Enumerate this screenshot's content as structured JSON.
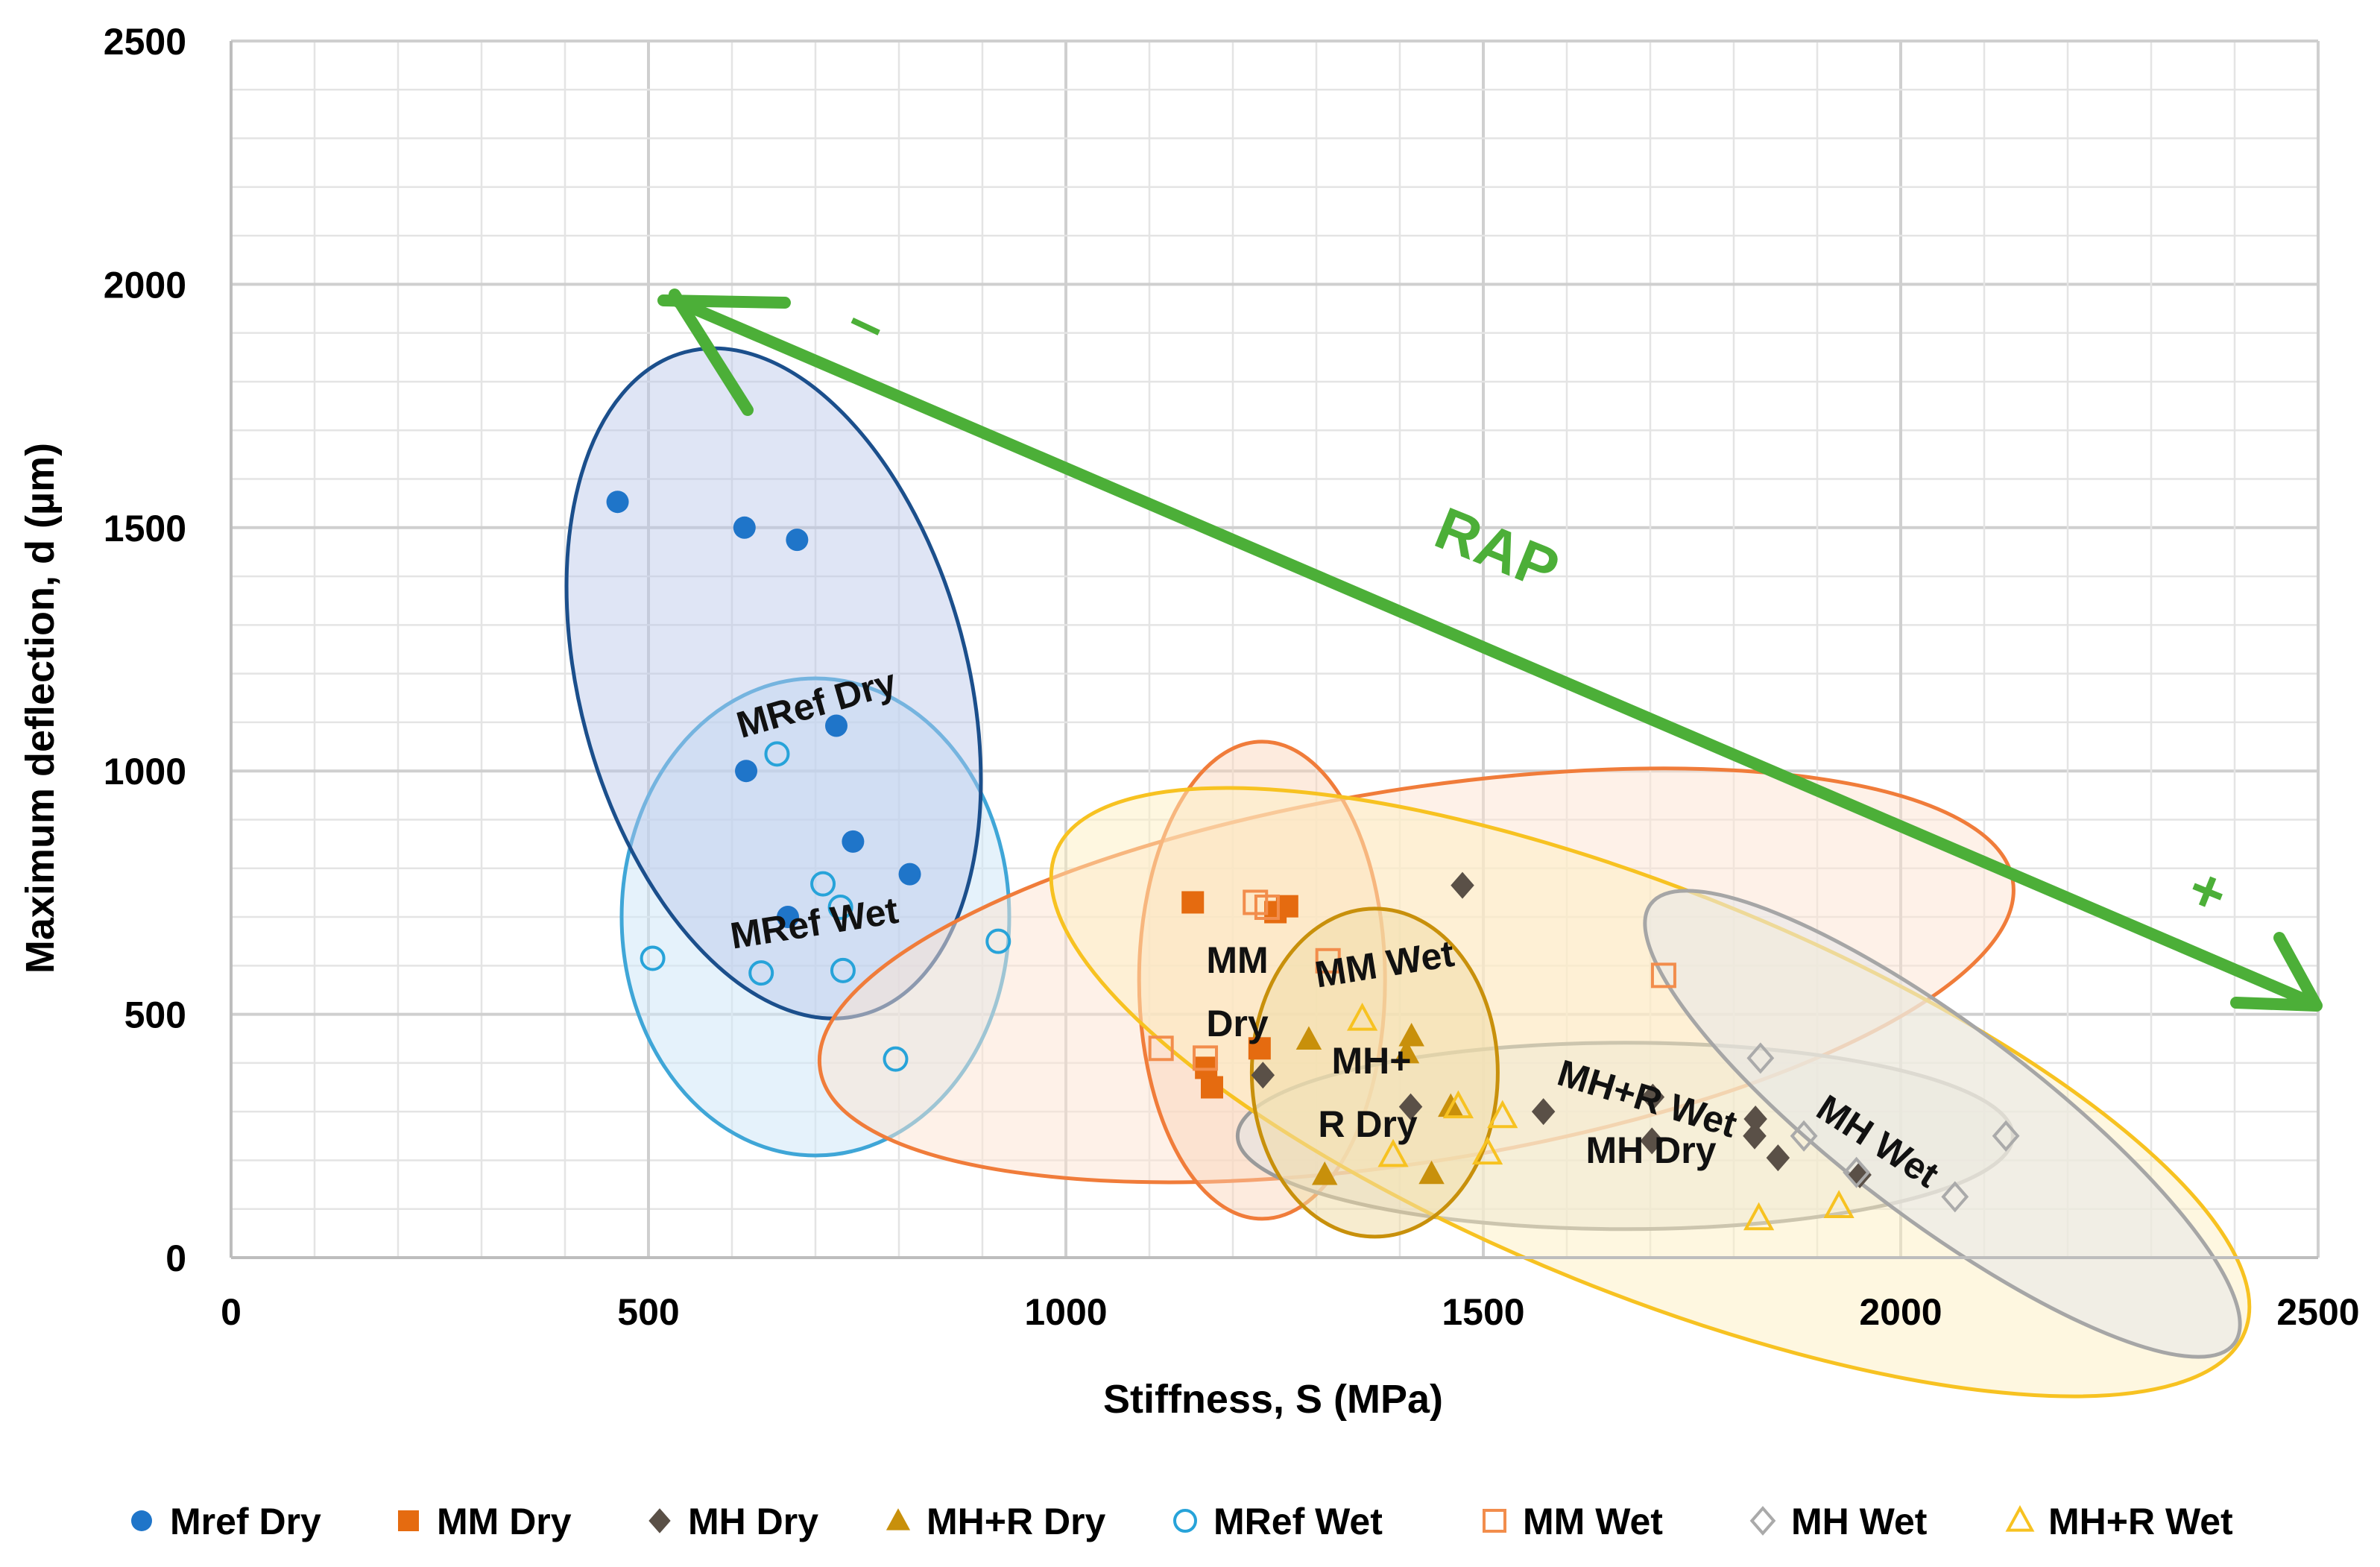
{
  "chart_data": {
    "type": "scatter",
    "title": "",
    "xlabel": "Stiffness, S (MPa)",
    "ylabel": "Maximum deflection, d (µm)",
    "xlim": [
      0,
      2500
    ],
    "ylim": [
      0,
      2500
    ],
    "x_ticks": [
      "0",
      "500",
      "1000",
      "1500",
      "2000",
      "2500"
    ],
    "y_ticks": [
      "0",
      "500",
      "1000",
      "1500",
      "2000",
      "2500"
    ],
    "grid": true,
    "legend_position": "bottom",
    "series": [
      {
        "name": "Mref Dry",
        "marker": "circle-filled",
        "color": "#1f75c9",
        "points": [
          [
            463,
            1553
          ],
          [
            615,
            1500
          ],
          [
            678,
            1475
          ],
          [
            725,
            1093
          ],
          [
            617,
            1000
          ],
          [
            745,
            855
          ],
          [
            813,
            788
          ],
          [
            667,
            700
          ]
        ]
      },
      {
        "name": "MM Dry",
        "marker": "square-filled",
        "color": "#e56b10",
        "points": [
          [
            1152,
            730
          ],
          [
            1251,
            710
          ],
          [
            1265,
            722
          ],
          [
            1168,
            390
          ],
          [
            1175,
            350
          ],
          [
            1232,
            430
          ]
        ]
      },
      {
        "name": "MH Dry",
        "marker": "diamond-filled",
        "color": "#5a5047",
        "points": [
          [
            1475,
            765
          ],
          [
            1236,
            375
          ],
          [
            1413,
            310
          ],
          [
            1572,
            300
          ],
          [
            1703,
            330
          ],
          [
            1826,
            285
          ],
          [
            1853,
            205
          ],
          [
            1825,
            250
          ],
          [
            1951,
            170
          ],
          [
            1702,
            240
          ]
        ]
      },
      {
        "name": "MH+R Dry",
        "marker": "triangle-filled",
        "color": "#c8900b",
        "points": [
          [
            1310,
            170
          ],
          [
            1291,
            448
          ],
          [
            1414,
            455
          ],
          [
            1408,
            420
          ],
          [
            1438,
            172
          ],
          [
            1461,
            310
          ]
        ]
      },
      {
        "name": "MRef Wet",
        "marker": "circle-open",
        "color": "#27a3d9",
        "points": [
          [
            654,
            1035
          ],
          [
            709,
            768
          ],
          [
            730,
            720
          ],
          [
            505,
            615
          ],
          [
            635,
            585
          ],
          [
            733,
            590
          ],
          [
            919,
            650
          ],
          [
            796,
            408
          ]
        ]
      },
      {
        "name": "MM Wet",
        "marker": "square-open",
        "color": "#f28d4c",
        "points": [
          [
            1227,
            730
          ],
          [
            1241,
            720
          ],
          [
            1314,
            610
          ],
          [
            1114,
            430
          ],
          [
            1167,
            410
          ],
          [
            1716,
            580
          ]
        ]
      },
      {
        "name": "MH Wet",
        "marker": "diamond-open",
        "color": "#aaaaaa",
        "points": [
          [
            1832,
            410
          ],
          [
            1884,
            250
          ],
          [
            2126,
            250
          ],
          [
            2065,
            125
          ],
          [
            1947,
            175
          ]
        ]
      },
      {
        "name": "MH+R Wet",
        "marker": "triangle-open",
        "color": "#f7c221",
        "points": [
          [
            1355,
            490
          ],
          [
            1470,
            310
          ],
          [
            1392,
            210
          ],
          [
            1505,
            215
          ],
          [
            1523,
            290
          ],
          [
            1830,
            80
          ],
          [
            1926,
            105
          ]
        ]
      }
    ],
    "annotations": [
      {
        "text": "MRef Dry"
      },
      {
        "text": "MRef Wet"
      },
      {
        "text": "MM"
      },
      {
        "text": "Dry"
      },
      {
        "text": "MM Wet"
      },
      {
        "text": "MH+"
      },
      {
        "text": "R Dry"
      },
      {
        "text": "MH+R Wet"
      },
      {
        "text": "MH Dry"
      },
      {
        "text": "MH Wet"
      },
      {
        "text": "RAP"
      },
      {
        "text": "–"
      },
      {
        "text": "+"
      }
    ],
    "colors": {
      "rap_arrow": "#4caf38",
      "grid": "#d9d9d9",
      "mref_dry_ellipse": "#1b4f8c",
      "mref_wet_ellipse": "#3fa6d7",
      "mm_dry_ellipse": "#f07c3a",
      "mm_wet_ellipse": "#f07c3a",
      "mhr_dry_ellipse": "#c8900b",
      "mhr_wet_ellipse": "#f7c221",
      "mh_dry_ellipse": "#9a9a9a",
      "mh_wet_ellipse": "#a6a6a6"
    }
  }
}
